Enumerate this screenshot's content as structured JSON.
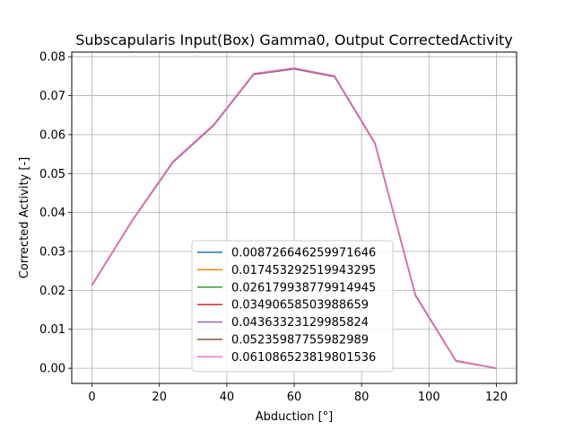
{
  "chart_data": {
    "type": "line",
    "title": "Subscapularis Input(Box) Gamma0, Output CorrectedActivity",
    "xlabel": "Abduction [°]",
    "ylabel": "Corrected Activity [-]",
    "xlim": [
      -6,
      126
    ],
    "ylim": [
      -0.0039,
      0.0812
    ],
    "xticks": [
      0,
      20,
      40,
      60,
      80,
      100,
      120
    ],
    "xtick_labels": [
      "0",
      "20",
      "40",
      "60",
      "80",
      "100",
      "120"
    ],
    "yticks": [
      0.0,
      0.01,
      0.02,
      0.03,
      0.04,
      0.05,
      0.06,
      0.07,
      0.08
    ],
    "ytick_labels": [
      "0.00",
      "0.01",
      "0.02",
      "0.03",
      "0.04",
      "0.05",
      "0.06",
      "0.07",
      "0.08"
    ],
    "grid": true,
    "legend_position": "lower-center",
    "x": [
      0,
      12,
      24,
      36,
      48,
      60,
      72,
      84,
      96,
      108,
      120
    ],
    "series": [
      {
        "name": "0.008726646259971646",
        "color": "#1f77b4",
        "values": [
          0.0213,
          0.038,
          0.0529,
          0.0623,
          0.0755,
          0.0769,
          0.0749,
          0.0577,
          0.0187,
          0.0019,
          0.0
        ]
      },
      {
        "name": "0.017453292519943295",
        "color": "#ff7f0e",
        "values": [
          0.0213,
          0.038,
          0.0529,
          0.0623,
          0.0755,
          0.0769,
          0.0749,
          0.0577,
          0.0187,
          0.0019,
          0.0
        ]
      },
      {
        "name": "0.026179938779914945",
        "color": "#2ca02c",
        "values": [
          0.0213,
          0.038,
          0.0529,
          0.0623,
          0.0755,
          0.0769,
          0.0749,
          0.0577,
          0.0187,
          0.0019,
          0.0
        ]
      },
      {
        "name": "0.03490658503988659",
        "color": "#d62728",
        "values": [
          0.0213,
          0.038,
          0.0529,
          0.0623,
          0.0755,
          0.0769,
          0.0749,
          0.0577,
          0.0187,
          0.0019,
          0.0
        ]
      },
      {
        "name": "0.04363323129985824",
        "color": "#9467bd",
        "values": [
          0.0213,
          0.038,
          0.0529,
          0.0623,
          0.0755,
          0.0769,
          0.0749,
          0.0577,
          0.0187,
          0.0019,
          0.0
        ]
      },
      {
        "name": "0.05235987755982989",
        "color": "#8c564b",
        "values": [
          0.0214,
          0.0381,
          0.053,
          0.0624,
          0.0756,
          0.077,
          0.075,
          0.0578,
          0.0188,
          0.0019,
          0.0
        ]
      },
      {
        "name": "0.061086523819801536",
        "color": "#e377c2",
        "values": [
          0.0214,
          0.0381,
          0.0531,
          0.0625,
          0.0757,
          0.0771,
          0.0751,
          0.0579,
          0.0189,
          0.002,
          0.0
        ]
      }
    ]
  }
}
